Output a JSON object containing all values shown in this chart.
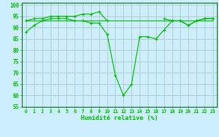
{
  "xlabel": "Humidité relative (%)",
  "bg_color": "#cceeff",
  "grid_color": "#aacccc",
  "line_color": "#00bb00",
  "xlim": [
    -0.5,
    23.5
  ],
  "ylim": [
    55,
    101
  ],
  "yticks": [
    55,
    60,
    65,
    70,
    75,
    80,
    85,
    90,
    95,
    100
  ],
  "xticks": [
    0,
    1,
    2,
    3,
    4,
    5,
    6,
    7,
    8,
    9,
    10,
    11,
    12,
    13,
    14,
    15,
    16,
    17,
    18,
    19,
    20,
    21,
    22,
    23
  ],
  "line1": [
    88,
    91,
    93,
    94,
    94,
    94,
    93,
    93,
    92,
    92,
    87,
    69,
    60,
    65,
    86,
    86,
    85,
    89,
    93,
    93,
    91,
    93,
    94,
    94
  ],
  "line2_a_x": [
    0,
    1,
    2,
    3,
    4,
    5,
    6,
    7,
    8,
    9,
    10
  ],
  "line2_a_y": [
    93,
    94,
    94,
    95,
    95,
    95,
    95,
    96,
    96,
    97,
    93
  ],
  "line2_b_x": [
    17,
    18,
    19,
    20,
    21,
    22,
    23
  ],
  "line2_b_y": [
    94,
    93,
    93,
    91,
    93,
    94,
    94
  ],
  "line3_x": [
    0,
    1,
    2,
    3,
    4,
    5,
    6,
    7,
    8,
    9,
    10,
    17,
    18,
    19,
    20,
    21,
    22,
    23
  ],
  "line3_y": [
    93,
    93,
    93,
    93,
    93,
    93,
    93,
    93,
    93,
    93,
    93,
    93,
    93,
    93,
    93,
    93,
    93,
    93
  ]
}
